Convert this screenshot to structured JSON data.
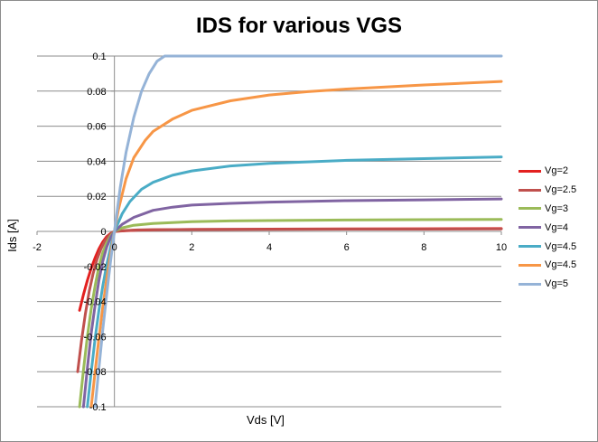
{
  "chart_data": {
    "type": "line",
    "title": "IDS for various VGS",
    "xlabel": "Vds [V]",
    "ylabel": "Ids [A]",
    "xlim": [
      -2,
      10
    ],
    "ylim": [
      -0.1,
      0.1
    ],
    "xticks": [
      "-2",
      "0",
      "2",
      "4",
      "6",
      "8",
      "10"
    ],
    "yticks": [
      "-0.1",
      "-0.08",
      "-0.06",
      "-0.04",
      "-0.02",
      "0",
      "0.02",
      "0.04",
      "0.06",
      "0.08",
      "0.1"
    ],
    "grid": "horizontal",
    "legend_position": "right",
    "series": [
      {
        "name": "Vg=2",
        "color": "#e3201f",
        "x": [
          -0.9,
          -0.8,
          -0.7,
          -0.6,
          -0.5,
          -0.4,
          -0.3,
          -0.2,
          -0.1,
          0,
          0.3,
          0.6,
          1,
          2,
          4,
          6,
          8,
          10
        ],
        "y": [
          -0.045,
          -0.036,
          -0.028,
          -0.021,
          -0.015,
          -0.01,
          -0.006,
          -0.003,
          -0.0012,
          0,
          0.0004,
          0.0007,
          0.0009,
          0.0011,
          0.0013,
          0.0014,
          0.0015,
          0.0016
        ]
      },
      {
        "name": "Vg=2.5",
        "color": "#c0504d",
        "x": [
          -0.95,
          -0.85,
          -0.75,
          -0.65,
          -0.55,
          -0.45,
          -0.35,
          -0.25,
          -0.15,
          -0.07,
          0,
          0.3,
          0.6,
          1,
          2,
          4,
          6,
          8,
          10
        ],
        "y": [
          -0.08,
          -0.062,
          -0.047,
          -0.034,
          -0.024,
          -0.016,
          -0.01,
          -0.0055,
          -0.0025,
          -0.001,
          0,
          0.0005,
          0.0008,
          0.001,
          0.0011,
          0.0012,
          0.0013,
          0.0013,
          0.0014
        ]
      },
      {
        "name": "Vg=3",
        "color": "#9bbb59",
        "x": [
          -0.9,
          -0.8,
          -0.7,
          -0.6,
          -0.5,
          -0.4,
          -0.3,
          -0.2,
          -0.1,
          0,
          0.2,
          0.5,
          1,
          2,
          3,
          4,
          6,
          8,
          10
        ],
        "y": [
          -0.1,
          -0.079,
          -0.06,
          -0.044,
          -0.031,
          -0.02,
          -0.012,
          -0.0065,
          -0.0025,
          0,
          0.002,
          0.0035,
          0.0045,
          0.0055,
          0.006,
          0.0062,
          0.0065,
          0.0067,
          0.0068
        ]
      },
      {
        "name": "Vg=4",
        "color": "#8064a2",
        "x": [
          -0.8,
          -0.7,
          -0.6,
          -0.5,
          -0.4,
          -0.3,
          -0.2,
          -0.1,
          0,
          0.2,
          0.5,
          1,
          1.5,
          2,
          3,
          4,
          6,
          8,
          10
        ],
        "y": [
          -0.1,
          -0.078,
          -0.058,
          -0.042,
          -0.028,
          -0.017,
          -0.009,
          -0.0035,
          0,
          0.004,
          0.008,
          0.012,
          0.0138,
          0.015,
          0.016,
          0.0167,
          0.0175,
          0.018,
          0.0185
        ]
      },
      {
        "name": "Vg=4.5",
        "color": "#4aacc6",
        "x": [
          -0.7,
          -0.6,
          -0.5,
          -0.4,
          -0.3,
          -0.2,
          -0.1,
          0,
          0.2,
          0.4,
          0.7,
          1,
          1.5,
          2,
          3,
          4,
          6,
          8,
          10
        ],
        "y": [
          -0.1,
          -0.08,
          -0.061,
          -0.045,
          -0.031,
          -0.019,
          -0.009,
          0,
          0.01,
          0.017,
          0.024,
          0.028,
          0.032,
          0.0345,
          0.0373,
          0.0388,
          0.0405,
          0.0415,
          0.0425
        ]
      },
      {
        "name": "Vg=4.5",
        "color": "#f79646",
        "x": [
          -0.6,
          -0.5,
          -0.4,
          -0.3,
          -0.2,
          -0.1,
          0,
          0.1,
          0.3,
          0.5,
          0.8,
          1,
          1.5,
          2,
          3,
          4,
          5,
          6,
          8,
          10
        ],
        "y": [
          -0.1,
          -0.08,
          -0.061,
          -0.043,
          -0.027,
          -0.013,
          0,
          0.012,
          0.03,
          0.042,
          0.052,
          0.057,
          0.064,
          0.069,
          0.0745,
          0.0778,
          0.0797,
          0.0812,
          0.0835,
          0.0855
        ]
      },
      {
        "name": "Vg=5",
        "color": "#95b3d7",
        "x": [
          -0.5,
          -0.4,
          -0.3,
          -0.2,
          -0.1,
          0,
          0.15,
          0.3,
          0.5,
          0.7,
          0.9,
          1.1,
          1.3,
          2,
          4,
          6,
          8,
          10
        ],
        "y": [
          -0.1,
          -0.078,
          -0.056,
          -0.036,
          -0.017,
          0,
          0.025,
          0.045,
          0.065,
          0.08,
          0.09,
          0.097,
          0.1,
          0.1,
          0.1,
          0.1,
          0.1,
          0.1
        ]
      }
    ]
  }
}
